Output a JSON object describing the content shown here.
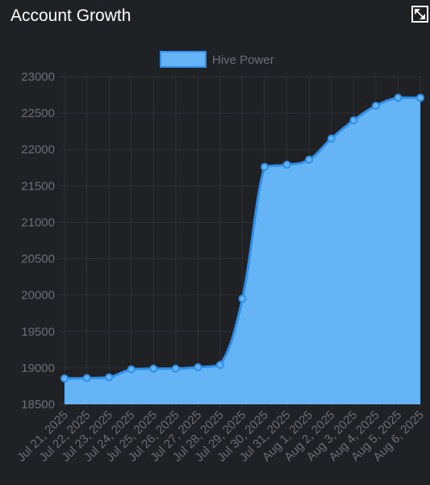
{
  "header": {
    "title": "Account Growth",
    "expand_icon": "expand-icon"
  },
  "colors": {
    "background": "#1f2125",
    "grid": "#2e3136",
    "fill": "#64b4f6",
    "line": "#2f8fe6",
    "tick_text": "#6b6f75"
  },
  "chart_data": {
    "type": "area",
    "legend": {
      "position": "top",
      "label": "Hive Power"
    },
    "x": [
      "Jul 21, 2025",
      "Jul 22, 2025",
      "Jul 23, 2025",
      "Jul 24, 2025",
      "Jul 25, 2025",
      "Jul 26, 2025",
      "Jul 27, 2025",
      "Jul 28, 2025",
      "Jul 29, 2025",
      "Jul 30, 2025",
      "Jul 31, 2025",
      "Aug 1, 2025",
      "Aug 2, 2025",
      "Aug 3, 2025",
      "Aug 4, 2025",
      "Aug 5, 2025",
      "Aug 6, 2025"
    ],
    "series": [
      {
        "name": "Hive Power",
        "values": [
          18855,
          18860,
          18870,
          18980,
          18990,
          18990,
          19010,
          19040,
          19950,
          21760,
          21790,
          21860,
          22150,
          22400,
          22600,
          22710,
          22710
        ]
      }
    ],
    "ylim": [
      18500,
      23000
    ],
    "yticks": [
      23000,
      22500,
      22000,
      21500,
      21000,
      20500,
      20000,
      19500,
      19000,
      18500
    ],
    "grid": true
  }
}
